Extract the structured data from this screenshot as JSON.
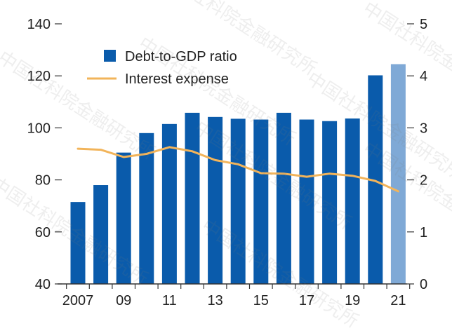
{
  "chart_data": {
    "type": "bar",
    "categories": [
      "2007",
      "08",
      "09",
      "10",
      "11",
      "12",
      "13",
      "14",
      "15",
      "16",
      "17",
      "18",
      "19",
      "20",
      "21"
    ],
    "x_tick_labels": [
      "2007",
      "09",
      "11",
      "13",
      "15",
      "17",
      "19",
      "21"
    ],
    "series": [
      {
        "name": "Debt-to-GDP ratio",
        "kind": "bar",
        "axis": "left",
        "color": "#0a5bab",
        "highlight": {
          "index": 14,
          "color": "#7fa9d6"
        },
        "values": [
          71.5,
          78,
          90.5,
          98,
          101.5,
          105.8,
          104.2,
          103.5,
          103.2,
          105.8,
          103.2,
          102.6,
          103.6,
          120.2,
          124.5
        ]
      },
      {
        "name": "Interest expense",
        "kind": "line",
        "axis": "right",
        "color": "#f2b45a",
        "values": [
          2.6,
          2.58,
          2.44,
          2.5,
          2.63,
          2.55,
          2.38,
          2.3,
          2.13,
          2.12,
          2.06,
          2.12,
          2.08,
          1.98,
          1.78
        ]
      }
    ],
    "left_axis": {
      "ylim": [
        40,
        140
      ],
      "ticks": [
        40,
        60,
        80,
        100,
        120,
        140
      ]
    },
    "right_axis": {
      "ylim": [
        0,
        5
      ],
      "ticks": [
        0,
        1,
        2,
        3,
        4,
        5
      ]
    },
    "legend": {
      "placement": "top-left"
    },
    "grid": false,
    "title": "",
    "xlabel": "",
    "ylabel": ""
  },
  "watermark": {
    "text": "中国社科院金融研究所",
    "color": "#b4b4b4"
  }
}
